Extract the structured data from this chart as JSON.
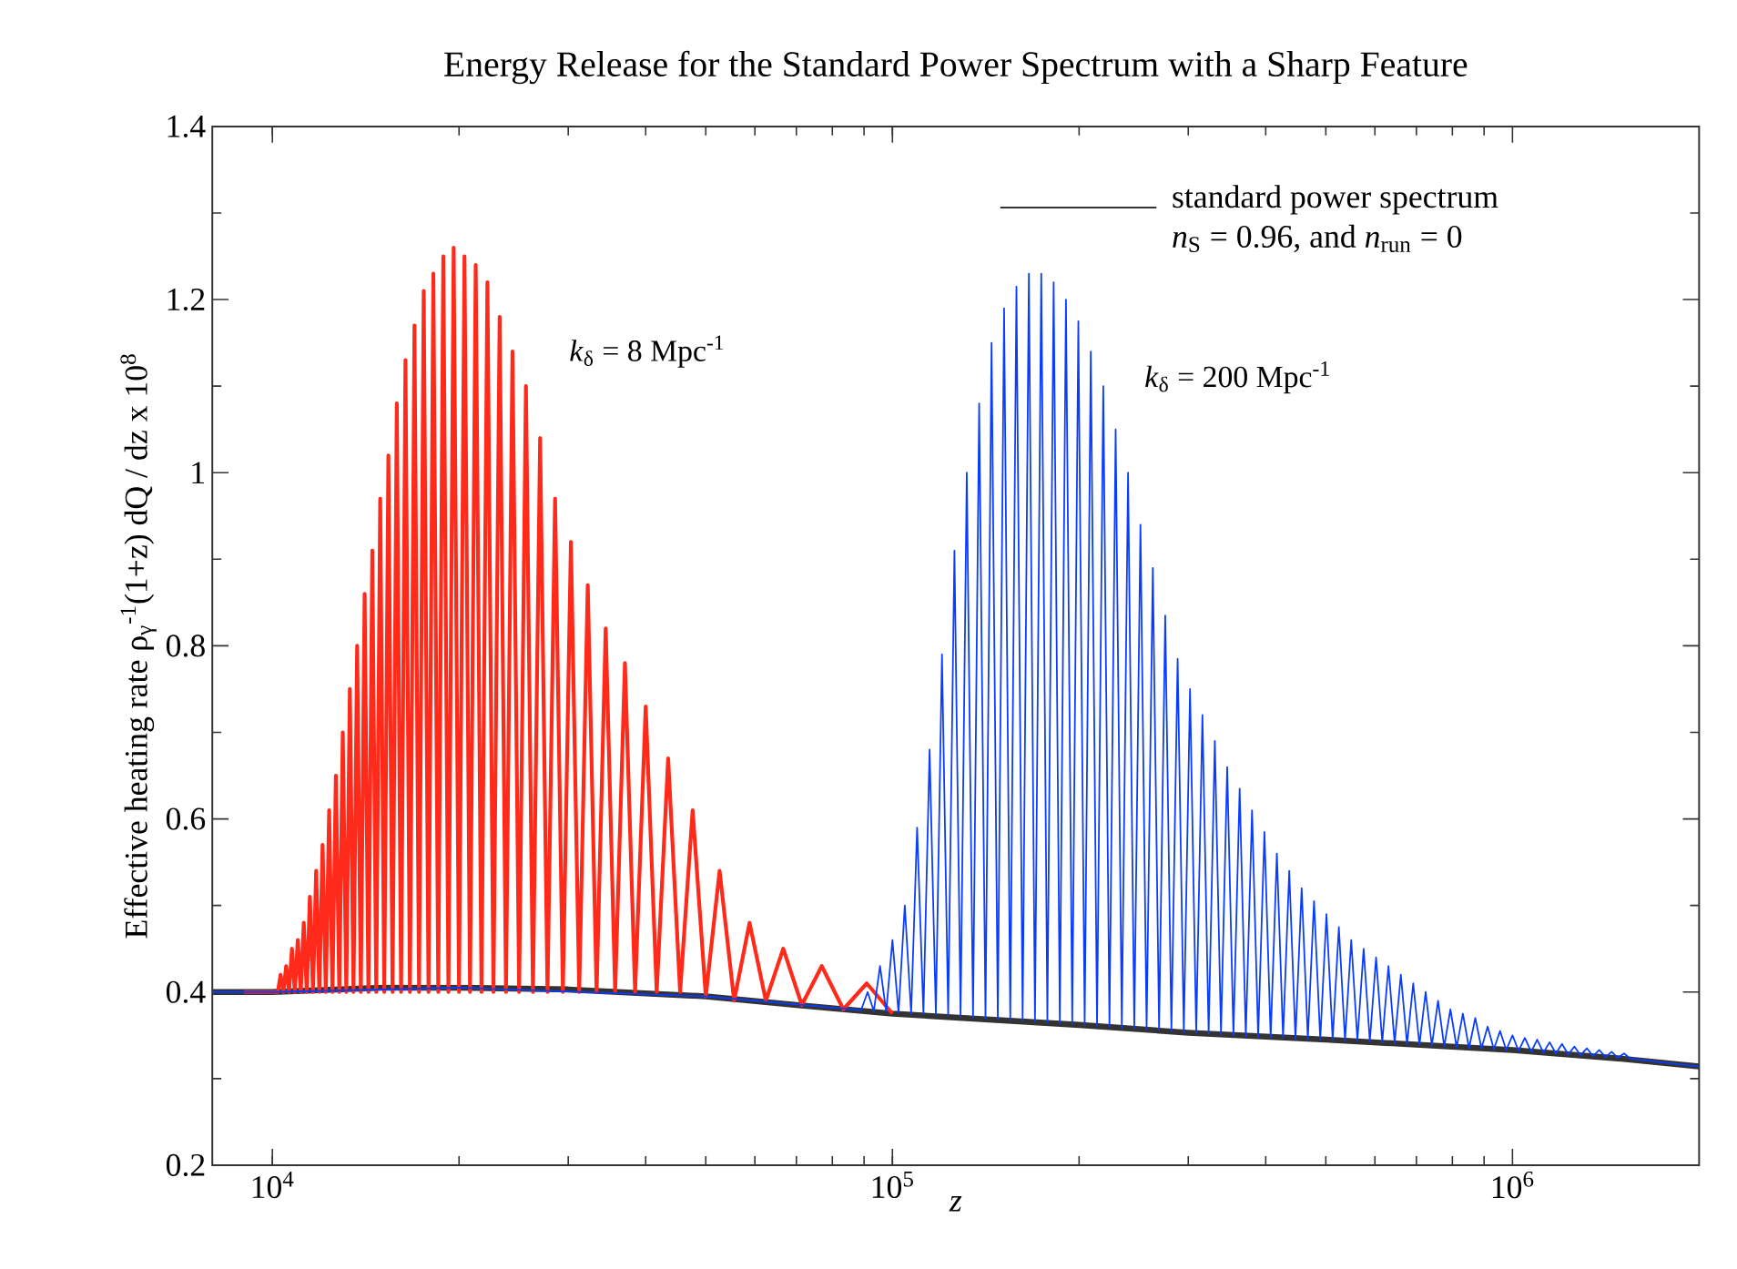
{
  "chart_data": {
    "type": "line",
    "title": "Energy Release for the Standard Power Spectrum with a Sharp Feature",
    "xlabel": "*z*",
    "ylabel": "Effective heating rate ρ$_{γ}$$^{-1}$(1+z) dQ / dz x 10$^{8}$",
    "log": "x",
    "xlim": [
      8000,
      2000000
    ],
    "ylim": [
      0.2,
      1.4
    ],
    "xticks": [
      {
        "value": 10000,
        "label": "10$^{4}$"
      },
      {
        "value": 100000,
        "label": "10$^{5}$"
      },
      {
        "value": 1000000,
        "label": "10$^{6}$"
      }
    ],
    "yticks": [
      0.2,
      0.4,
      0.6,
      0.8,
      1,
      1.2,
      1.4
    ],
    "legend": "top right",
    "annotations": [
      "*n*$_{S}$ = 0.96, and *n*$_{run}$ = 0"
    ],
    "series": [
      {
        "name": "standard power spectrum",
        "color": "#333333",
        "x": [
          8000,
          10000,
          15000,
          20000,
          30000,
          50000,
          70000,
          100000,
          200000,
          300000,
          500000,
          1000000,
          1500000,
          2000000
        ],
        "values": [
          0.4,
          0.4,
          0.405,
          0.405,
          0.403,
          0.395,
          0.385,
          0.375,
          0.362,
          0.353,
          0.345,
          0.333,
          0.323,
          0.314
        ]
      },
      {
        "name": "*k*$_{δ}$ = 8 Mpc$^{-1}$",
        "color": "#ff2a1a",
        "x": [
          9000,
          10000,
          10204,
          10309,
          10417,
          10526,
          10638,
          10753,
          10870,
          10989,
          11111,
          11236,
          11364,
          11494,
          11628,
          11765,
          11905,
          12048,
          12195,
          12346,
          12500,
          12658,
          12821,
          12987,
          13158,
          13333,
          13514,
          13699,
          13889,
          14085,
          14286,
          14493,
          14706,
          14925,
          15152,
          15385,
          15625,
          15873,
          16129,
          16393,
          16667,
          16949,
          17241,
          17544,
          17857,
          18182,
          18519,
          18868,
          19231,
          19608,
          20000,
          20408,
          20833,
          21277,
          21739,
          22222,
          22727,
          23256,
          23810,
          24390,
          25000,
          25641,
          26316,
          27027,
          27778,
          28571,
          29412,
          30303,
          31250,
          32258,
          33333,
          34483,
          35714,
          37037,
          38462,
          40000,
          41667,
          43478,
          45455,
          47619,
          50000,
          52632,
          55556,
          58824,
          62500,
          66667,
          71429,
          76923,
          83333,
          90909,
          100000
        ],
        "values": [
          0.4,
          0.4,
          0.4,
          0.42,
          0.4,
          0.43,
          0.4,
          0.45,
          0.4,
          0.46,
          0.4,
          0.48,
          0.4,
          0.51,
          0.4,
          0.54,
          0.4,
          0.57,
          0.4,
          0.61,
          0.4,
          0.65,
          0.4,
          0.7,
          0.4,
          0.75,
          0.4,
          0.8,
          0.4,
          0.86,
          0.4,
          0.91,
          0.4,
          0.97,
          0.4,
          1.02,
          0.4,
          1.08,
          0.4,
          1.13,
          0.4,
          1.17,
          0.4,
          1.21,
          0.4,
          1.23,
          0.4,
          1.25,
          0.4,
          1.26,
          0.4,
          1.25,
          0.4,
          1.24,
          0.4,
          1.22,
          0.4,
          1.18,
          0.4,
          1.14,
          0.4,
          1.1,
          0.4,
          1.04,
          0.4,
          0.97,
          0.4,
          0.92,
          0.4,
          0.87,
          0.4,
          0.82,
          0.4,
          0.78,
          0.4,
          0.73,
          0.4,
          0.67,
          0.4,
          0.61,
          0.395,
          0.54,
          0.39,
          0.48,
          0.39,
          0.45,
          0.385,
          0.43,
          0.38,
          0.41,
          0.375
        ]
      },
      {
        "name": "*k*$_{δ}$ = 200 Mpc$^{-1}$",
        "color": "#0a3cff",
        "x": [
          8000,
          10000,
          20000,
          50000,
          89000,
          91200,
          93330,
          95500,
          97720,
          100000,
          102300,
          104700,
          107200,
          109600,
          112200,
          114800,
          117500,
          120200,
          123000,
          125900,
          128800,
          131800,
          134900,
          138000,
          141300,
          144500,
          147900,
          151400,
          154900,
          158500,
          162200,
          166000,
          169800,
          173800,
          177800,
          182000,
          186200,
          190500,
          195000,
          199500,
          204200,
          208900,
          213800,
          218800,
          223900,
          229100,
          234400,
          239900,
          245500,
          251200,
          257000,
          263000,
          269200,
          275400,
          281800,
          288400,
          295100,
          302000,
          309000,
          316200,
          323600,
          331100,
          338800,
          346700,
          354800,
          363100,
          371500,
          380200,
          389000,
          398100,
          407400,
          416900,
          426600,
          436500,
          446700,
          457100,
          467700,
          478600,
          489800,
          501200,
          512900,
          524800,
          537000,
          549500,
          562300,
          575400,
          588800,
          602600,
          616600,
          631000,
          645700,
          660700,
          676100,
          691800,
          707900,
          724400,
          741300,
          758600,
          776200,
          794300,
          812800,
          831800,
          851100,
          871000,
          891300,
          912000,
          933300,
          955000,
          977200,
          1000000,
          1023000,
          1047000,
          1072000,
          1096000,
          1122000,
          1148000,
          1175000,
          1202000,
          1230000,
          1259000,
          1288000,
          1318000,
          1349000,
          1380000,
          1413000,
          1445000,
          1479000,
          1514000,
          1549000,
          2000000
        ],
        "values": [
          0.4,
          0.4,
          0.405,
          0.395,
          0.379,
          0.4,
          0.378,
          0.43,
          0.377,
          0.46,
          0.376,
          0.5,
          0.375,
          0.59,
          0.375,
          0.68,
          0.374,
          0.79,
          0.373,
          0.91,
          0.372,
          1.0,
          0.371,
          1.08,
          0.37,
          1.15,
          0.369,
          1.19,
          0.368,
          1.215,
          0.367,
          1.23,
          0.366,
          1.23,
          0.365,
          1.22,
          0.364,
          1.2,
          0.363,
          1.175,
          0.362,
          1.14,
          0.361,
          1.1,
          0.36,
          1.05,
          0.359,
          1.0,
          0.358,
          0.94,
          0.357,
          0.89,
          0.356,
          0.835,
          0.355,
          0.785,
          0.354,
          0.75,
          0.353,
          0.72,
          0.352,
          0.69,
          0.351,
          0.66,
          0.35,
          0.635,
          0.349,
          0.61,
          0.348,
          0.585,
          0.347,
          0.56,
          0.347,
          0.54,
          0.346,
          0.52,
          0.346,
          0.505,
          0.345,
          0.49,
          0.345,
          0.475,
          0.344,
          0.46,
          0.344,
          0.45,
          0.343,
          0.44,
          0.342,
          0.43,
          0.341,
          0.42,
          0.34,
          0.41,
          0.339,
          0.4,
          0.338,
          0.39,
          0.337,
          0.38,
          0.336,
          0.375,
          0.335,
          0.37,
          0.335,
          0.36,
          0.334,
          0.355,
          0.333,
          0.35,
          0.332,
          0.347,
          0.331,
          0.345,
          0.33,
          0.342,
          0.329,
          0.34,
          0.328,
          0.337,
          0.327,
          0.335,
          0.326,
          0.333,
          0.325,
          0.331,
          0.324,
          0.329,
          0.323,
          0.314
        ]
      }
    ]
  }
}
